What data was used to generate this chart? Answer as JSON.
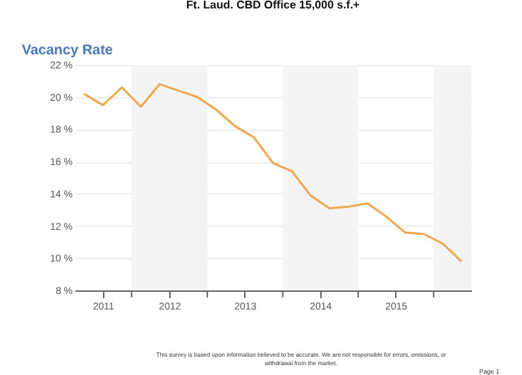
{
  "chart_data": {
    "type": "line",
    "title": "Ft. Laud. CBD Office 15,000 s.f.+",
    "ylabel": "Vacancy Rate",
    "x": [
      "2011-05-15",
      "2011-08-15",
      "2011-11-15",
      "2012-02-15",
      "2012-05-15",
      "2012-08-15",
      "2012-11-15",
      "2013-02-15",
      "2013-05-15",
      "2013-08-15",
      "2013-11-15",
      "2014-02-15",
      "2014-05-15",
      "2014-08-15",
      "2014-11-15",
      "2015-02-15",
      "2015-05-15",
      "2015-08-15",
      "2015-11-15",
      "2016-02-15",
      "2016-05-15"
    ],
    "series": [
      {
        "color": "#f0a850",
        "values": [
          20.2,
          19.5,
          20.6,
          19.4,
          20.8,
          20.4,
          20.0,
          19.2,
          18.2,
          17.5,
          15.9,
          15.4,
          13.9,
          13.1,
          13.2,
          13.4,
          12.6,
          11.6,
          11.5,
          10.9,
          9.8
        ]
      }
    ],
    "xlim": [
      "2011-04-01",
      "2016-07-01"
    ],
    "xticks": [
      {
        "value": "2011-08-15",
        "label": "2011"
      },
      {
        "value": "2012-01-01",
        "label": null
      },
      {
        "value": "2012-07-01",
        "label": "2012"
      },
      {
        "value": "2013-01-01",
        "label": null
      },
      {
        "value": "2013-07-01",
        "label": "2013"
      },
      {
        "value": "2014-01-01",
        "label": null
      },
      {
        "value": "2014-07-01",
        "label": "2014"
      },
      {
        "value": "2015-01-01",
        "label": null
      },
      {
        "value": "2015-07-01",
        "label": "2015"
      },
      {
        "value": "2016-01-01",
        "label": null
      }
    ],
    "ylim": [
      8,
      22
    ],
    "yticks": [
      {
        "value": 8,
        "label": "8 %"
      },
      {
        "value": 10,
        "label": "10 %"
      },
      {
        "value": 12,
        "label": "12 %"
      },
      {
        "value": 14,
        "label": "14 %"
      },
      {
        "value": 16,
        "label": "16 %"
      },
      {
        "value": 18,
        "label": "18 %"
      },
      {
        "value": 20,
        "label": "20 %"
      },
      {
        "value": 22,
        "label": "22 %"
      }
    ],
    "grid": "y",
    "marker": "none",
    "line_style": "solid",
    "bands": [
      {
        "axis": "x",
        "from": "2012-01-01",
        "to": "2013-01-01",
        "color": "#f4f4f4"
      },
      {
        "axis": "x",
        "from": "2014-01-01",
        "to": "2015-01-01",
        "color": "#f4f4f4"
      },
      {
        "axis": "x",
        "from": "2016-01-01",
        "to": "2016-07-01",
        "color": "#f4f4f4"
      }
    ],
    "annotations": [
      "This survey is based upon information believed to be accurate.  We are not responsible for errors, omissions, or withdrawal from the market.",
      "Page 1"
    ]
  }
}
